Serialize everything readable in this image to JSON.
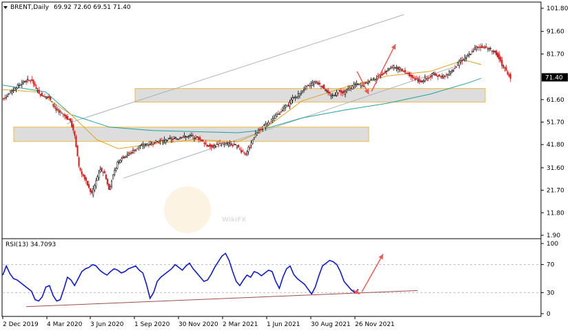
{
  "chart_data": [
    {
      "type": "candlestick",
      "symbol_header": "BRENT,Daily",
      "ohlc_header": "69.92 72.60 69.51 71.40",
      "current_price_label": "71.40",
      "y_ticks": [
        "101.80",
        "91.60",
        "81.70",
        "71.40",
        "61.60",
        "51.70",
        "41.80",
        "31.60",
        "21.70",
        "11.80",
        "1.90"
      ],
      "x_ticks": [
        "2 Dec 2019",
        "4 Mar 2020",
        "3 Jun 2020",
        "1 Sep 2020",
        "30 Nov 2020",
        "2 Mar 2021",
        "1 Jun 2021",
        "30 Aug 2021",
        "26 Nov 2021"
      ],
      "ylim": [
        1.9,
        101.8
      ],
      "price_series_closes": [
        63,
        65,
        66.5,
        68,
        69.5,
        70,
        70.2,
        66,
        64,
        63,
        62.5,
        59,
        56.5,
        55,
        54,
        52,
        46,
        32,
        28,
        24,
        20,
        26,
        31,
        29,
        22,
        28,
        34,
        36,
        37,
        38,
        39.5,
        41,
        41.5,
        42,
        42.5,
        43,
        43.2,
        43.5,
        44,
        44.2,
        44.5,
        45,
        45.3,
        45.5,
        45.2,
        44.5,
        43,
        41.5,
        41,
        41.5,
        42,
        42.3,
        42,
        41.5,
        41,
        39,
        38,
        41,
        45,
        48,
        49.5,
        50.5,
        52,
        54,
        56,
        58,
        59,
        62,
        63,
        65,
        67,
        68,
        69,
        68.5,
        67.5,
        65,
        63,
        64,
        65.5,
        64.5,
        66,
        67.5,
        68.5,
        67.5,
        69,
        70,
        70.5,
        71.5,
        73,
        74.5,
        75.5,
        76,
        75,
        74,
        73,
        71.5,
        70.5,
        69.5,
        70.5,
        71.5,
        73,
        72,
        71.5,
        72.5,
        74,
        75.5,
        78,
        79.5,
        81,
        83,
        84.5,
        85,
        84.5,
        84,
        83,
        81,
        77,
        74,
        71.4
      ],
      "channel_top_line": [
        [
          "2019-12-23",
          51
        ],
        [
          "2021-12-20",
          99
        ]
      ],
      "channel_bottom_line": [
        [
          "2020-05-11",
          27
        ],
        [
          "2021-12-29",
          77
        ]
      ],
      "ma_slow_points": [
        [
          0,
          68
        ],
        [
          10,
          65
        ],
        [
          16,
          55
        ],
        [
          25,
          49.5
        ],
        [
          35,
          48
        ],
        [
          45,
          47.5
        ],
        [
          55,
          47
        ],
        [
          60,
          48
        ],
        [
          70,
          53.5
        ],
        [
          80,
          57
        ],
        [
          90,
          60
        ],
        [
          100,
          64
        ],
        [
          109,
          69
        ],
        [
          112,
          71
        ]
      ],
      "ma_fast_points": [
        [
          0,
          66
        ],
        [
          8,
          65
        ],
        [
          16,
          55
        ],
        [
          22,
          44
        ],
        [
          27,
          40
        ],
        [
          35,
          42
        ],
        [
          45,
          44
        ],
        [
          55,
          43
        ],
        [
          60,
          47
        ],
        [
          70,
          61
        ],
        [
          80,
          67
        ],
        [
          90,
          72
        ],
        [
          100,
          74
        ],
        [
          108,
          79
        ],
        [
          112,
          77
        ]
      ],
      "support_zone": [
        "60.5",
        "66.5"
      ],
      "resistance_zone": [
        "43.2",
        "49.5"
      ],
      "price_arrow_start": [
        112,
        64
      ],
      "price_arrow_mid": [
        118,
        64
      ],
      "price_arrow_end": [
        124,
        86
      ],
      "rsi_header": "RSI(13) 34.7093",
      "rsi_ticks": [
        "100",
        "70",
        "30",
        "0"
      ],
      "rsi_levels": [
        30,
        70
      ],
      "rsi_values": [
        55,
        68,
        57,
        50,
        48,
        44,
        40,
        36,
        32,
        20,
        18,
        24,
        38,
        40,
        26,
        18,
        20,
        35,
        52,
        48,
        40,
        50,
        60,
        64,
        66,
        70,
        68,
        62,
        58,
        55,
        60,
        64,
        62,
        58,
        60,
        64,
        66,
        68,
        62,
        58,
        42,
        22,
        30,
        46,
        52,
        56,
        60,
        64,
        70,
        66,
        62,
        68,
        72,
        64,
        58,
        52,
        46,
        48,
        56,
        66,
        74,
        82,
        86,
        76,
        60,
        46,
        40,
        48,
        55,
        52,
        60,
        58,
        54,
        58,
        62,
        60,
        46,
        36,
        52,
        64,
        68,
        56,
        50,
        46,
        42,
        35,
        28,
        38,
        54,
        68,
        72,
        76,
        74,
        70,
        60,
        46,
        40,
        34,
        30,
        34.7
      ],
      "rsi_trendline": [
        [
          "2019-12-29",
          10
        ],
        [
          "2021-12-20",
          33
        ]
      ],
      "rsi_arrow_start": [
        112,
        28
      ],
      "rsi_arrow_mid": [
        118,
        28
      ],
      "rsi_arrow_end": [
        124,
        85
      ],
      "watermark": "WikiFX",
      "colors": {
        "candle_up": "#000000",
        "candle_down": "#d11f1f",
        "ma_fast": "#e3a21a",
        "ma_slow": "#1fa39a",
        "channel": "#aab3bb",
        "zone_fill": "#d9d9d9",
        "zone_border": "#f0c25a",
        "arrow": "#f05a4f",
        "rsi_line": "#0c1bd3",
        "rsi_trendline": "#9c4d4d",
        "price_tag_bg": "#000000",
        "price_tag_text": "#ffffff"
      }
    }
  ]
}
